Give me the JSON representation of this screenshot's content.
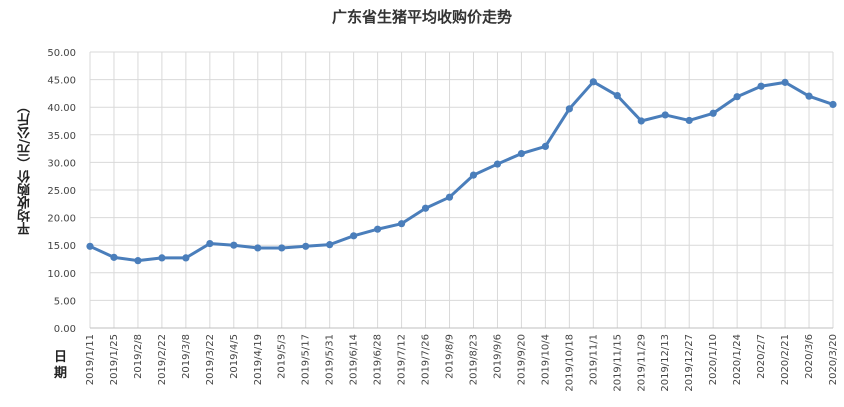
{
  "chart_data": {
    "type": "line",
    "title": "广东省生猪平均收购价走势",
    "ylabel": "平均收购价（元/公斤）",
    "xlabel": "日期",
    "ylim": [
      0,
      50
    ],
    "yticks": [
      "0.00",
      "5.00",
      "10.00",
      "15.00",
      "20.00",
      "25.00",
      "30.00",
      "35.00",
      "40.00",
      "45.00",
      "50.00"
    ],
    "grid": true,
    "legend": "none",
    "line_color": "#4a7ebb",
    "categories": [
      "2019/1/11",
      "2019/1/25",
      "2019/2/8",
      "2019/2/22",
      "2019/3/8",
      "2019/3/22",
      "2019/4/5",
      "2019/4/19",
      "2019/5/3",
      "2019/5/17",
      "2019/5/31",
      "2019/6/14",
      "2019/6/28",
      "2019/7/12",
      "2019/7/26",
      "2019/8/9",
      "2019/8/23",
      "2019/9/6",
      "2019/9/20",
      "2019/10/4",
      "2019/10/18",
      "2019/11/1",
      "2019/11/15",
      "2019/11/29",
      "2019/12/13",
      "2019/12/27",
      "2020/1/10",
      "2020/1/24",
      "2020/2/7",
      "2020/2/21",
      "2020/3/6",
      "2020/3/20"
    ],
    "values": [
      14.8,
      12.8,
      12.2,
      12.7,
      12.7,
      15.3,
      15.0,
      14.5,
      14.5,
      14.8,
      15.1,
      16.7,
      17.9,
      18.9,
      21.7,
      23.7,
      27.7,
      29.7,
      31.6,
      32.9,
      39.7,
      44.6,
      42.1,
      37.5,
      38.6,
      37.6,
      38.9,
      41.9,
      43.8,
      44.5,
      42.0,
      40.5
    ]
  }
}
